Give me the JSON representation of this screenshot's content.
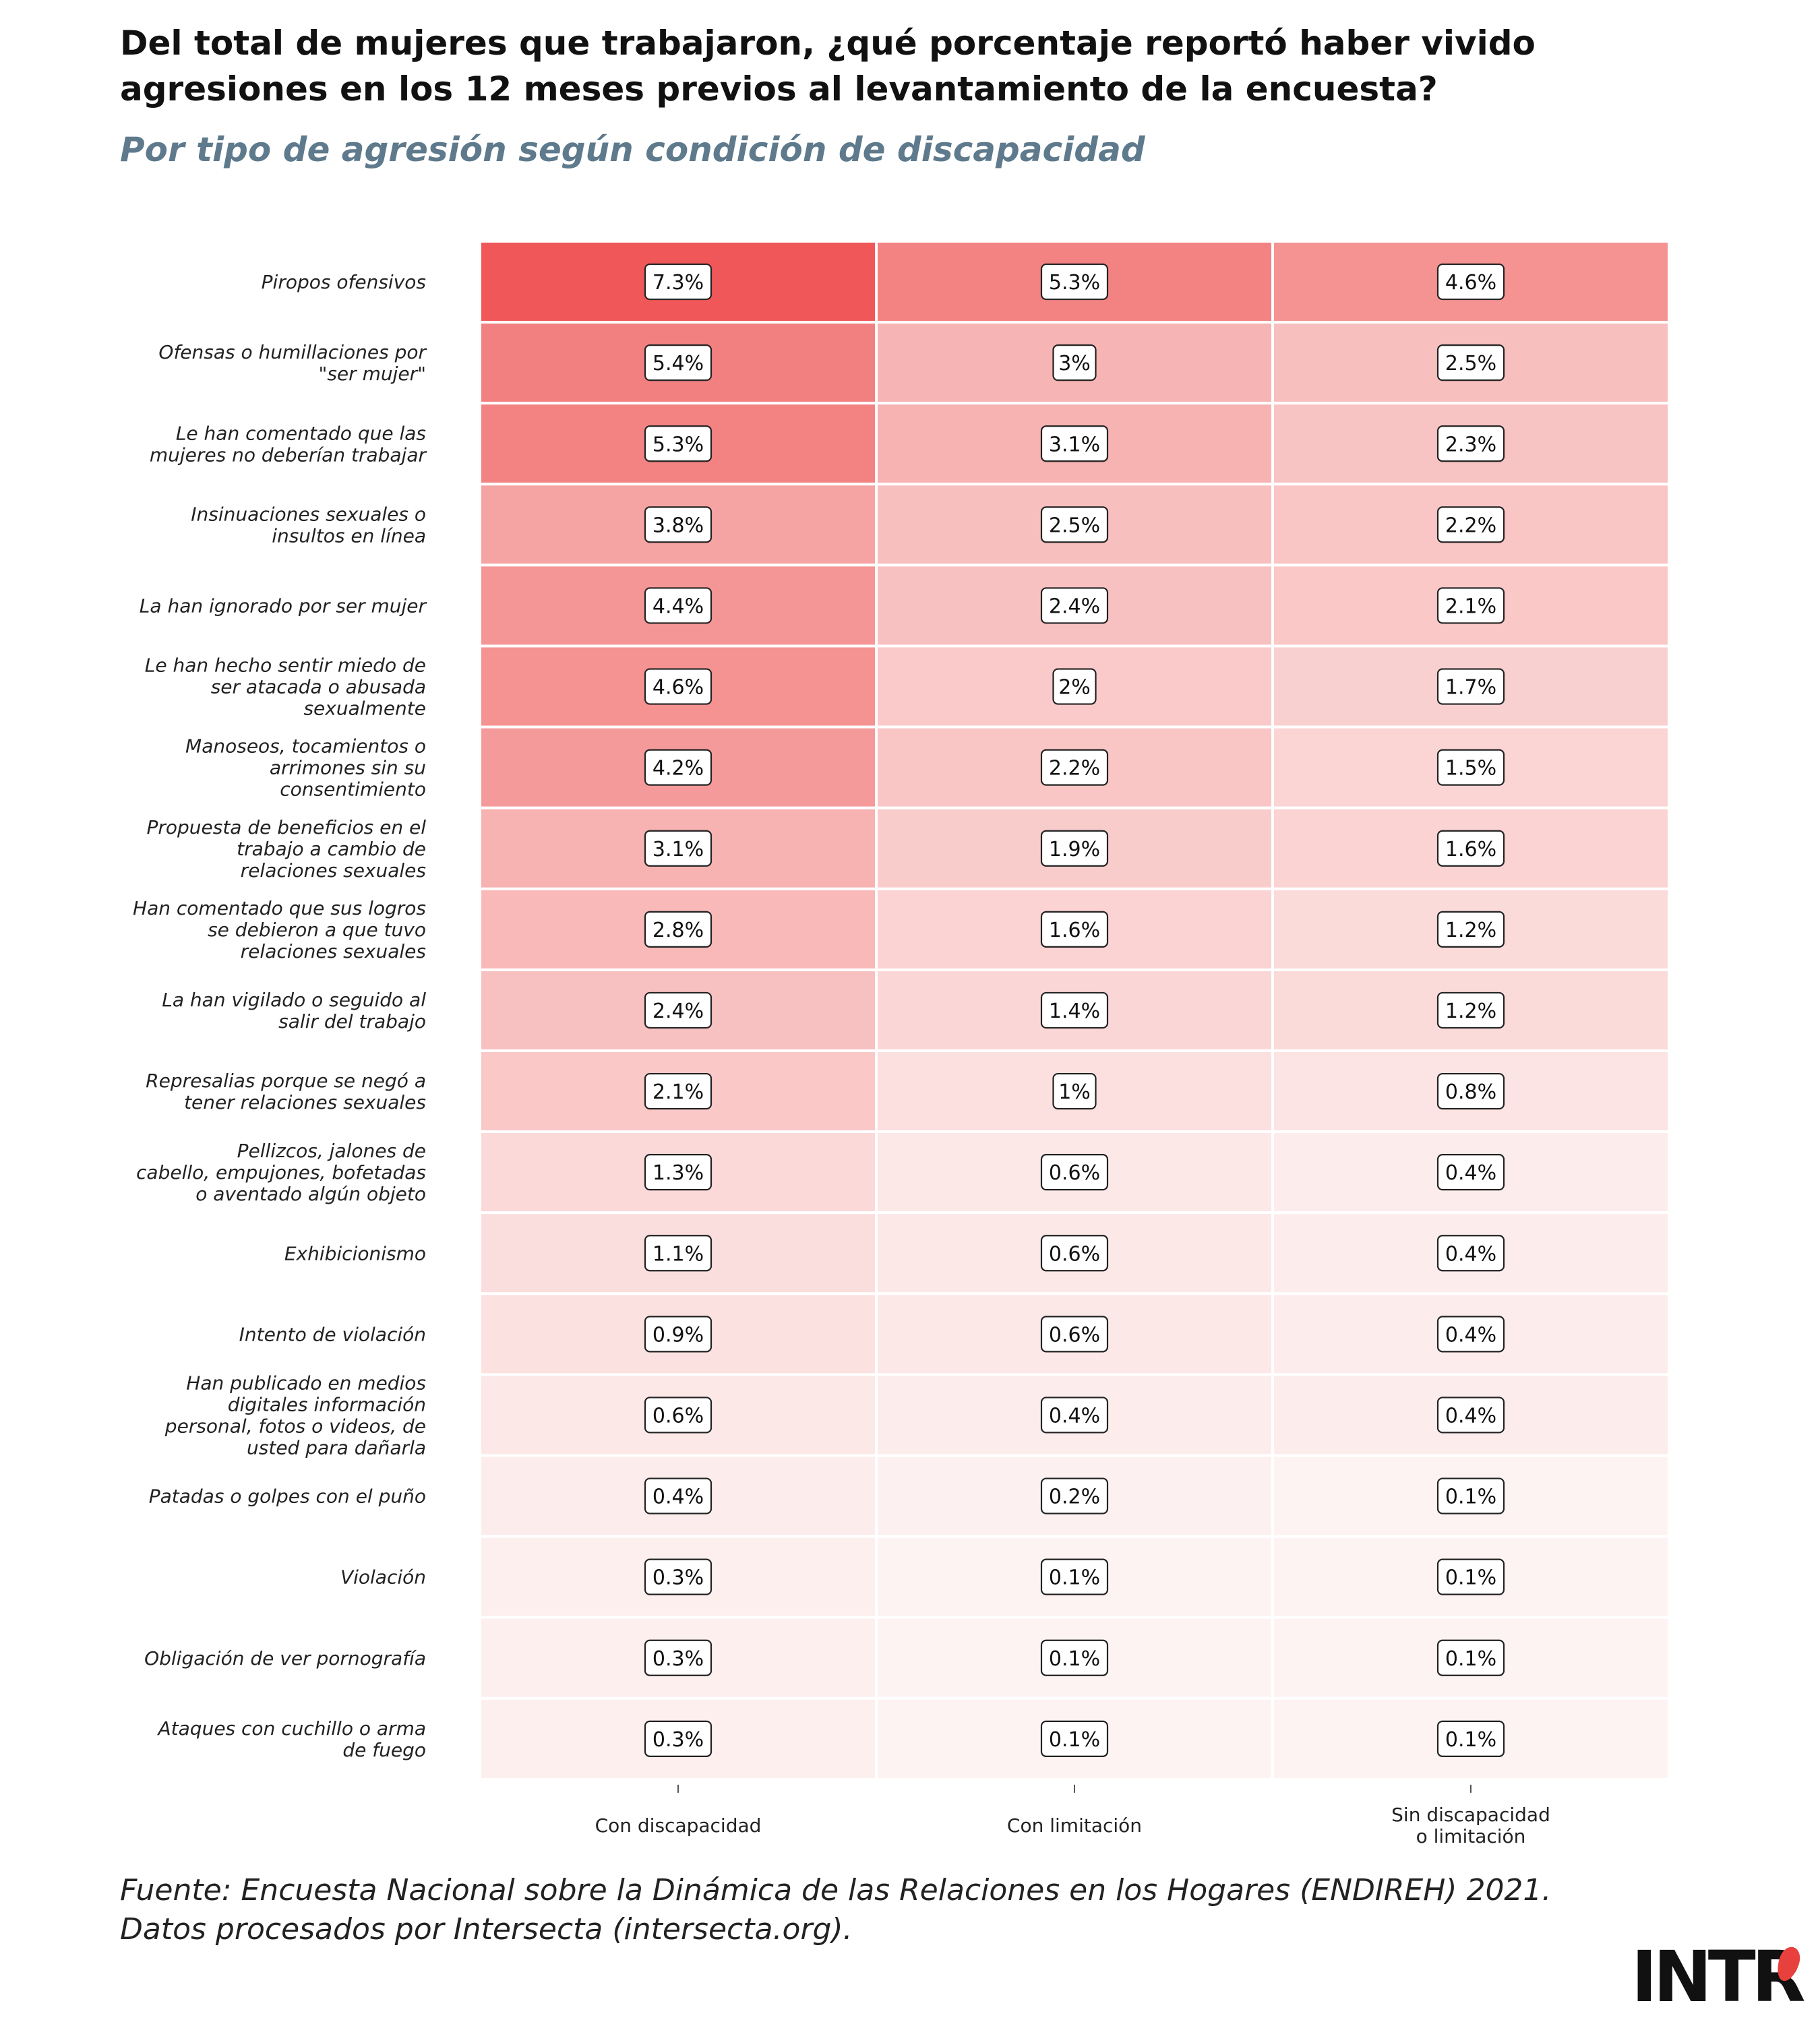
{
  "header": {
    "title_line1": "Del total de mujeres que trabajaron, ¿qué porcentaje reportó haber vivido",
    "title_line2": "agresiones en los 12 meses previos al levantamiento de la encuesta?",
    "subtitle": "Por tipo de agresión según condición de discapacidad"
  },
  "chart_data": {
    "type": "heatmap",
    "columns": [
      [
        "Con discapacidad"
      ],
      [
        "Con limitación"
      ],
      [
        "Sin discapacidad",
        "o limitación"
      ]
    ],
    "rows": [
      {
        "label": [
          "Piropos ofensivos"
        ],
        "values": [
          7.3,
          5.3,
          4.6
        ],
        "labels": [
          "7.3%",
          "5.3%",
          "4.6%"
        ]
      },
      {
        "label": [
          "Ofensas o humillaciones por",
          "\"ser mujer\""
        ],
        "values": [
          5.4,
          3,
          2.5
        ],
        "labels": [
          "5.4%",
          "3%",
          "2.5%"
        ]
      },
      {
        "label": [
          "Le han comentado que las",
          "mujeres no deberían trabajar"
        ],
        "values": [
          5.3,
          3.1,
          2.3
        ],
        "labels": [
          "5.3%",
          "3.1%",
          "2.3%"
        ]
      },
      {
        "label": [
          "Insinuaciones sexuales o",
          "insultos en línea"
        ],
        "values": [
          3.8,
          2.5,
          2.2
        ],
        "labels": [
          "3.8%",
          "2.5%",
          "2.2%"
        ]
      },
      {
        "label": [
          "La han ignorado por ser mujer"
        ],
        "values": [
          4.4,
          2.4,
          2.1
        ],
        "labels": [
          "4.4%",
          "2.4%",
          "2.1%"
        ]
      },
      {
        "label": [
          "Le han hecho sentir miedo de",
          "ser atacada o abusada",
          "sexualmente"
        ],
        "values": [
          4.6,
          2,
          1.7
        ],
        "labels": [
          "4.6%",
          "2%",
          "1.7%"
        ]
      },
      {
        "label": [
          "Manoseos, tocamientos o",
          "arrimones sin su",
          "consentimiento"
        ],
        "values": [
          4.2,
          2.2,
          1.5
        ],
        "labels": [
          "4.2%",
          "2.2%",
          "1.5%"
        ]
      },
      {
        "label": [
          "Propuesta de beneficios en el",
          "trabajo a cambio de",
          "relaciones sexuales"
        ],
        "values": [
          3.1,
          1.9,
          1.6
        ],
        "labels": [
          "3.1%",
          "1.9%",
          "1.6%"
        ]
      },
      {
        "label": [
          "Han comentado que sus logros",
          "se debieron a que tuvo",
          "relaciones sexuales"
        ],
        "values": [
          2.8,
          1.6,
          1.2
        ],
        "labels": [
          "2.8%",
          "1.6%",
          "1.2%"
        ]
      },
      {
        "label": [
          "La han vigilado o seguido al",
          "salir del trabajo"
        ],
        "values": [
          2.4,
          1.4,
          1.2
        ],
        "labels": [
          "2.4%",
          "1.4%",
          "1.2%"
        ]
      },
      {
        "label": [
          "Represalias porque se negó a",
          "tener relaciones sexuales"
        ],
        "values": [
          2.1,
          1,
          0.8
        ],
        "labels": [
          "2.1%",
          "1%",
          "0.8%"
        ]
      },
      {
        "label": [
          "Pellizcos, jalones de",
          "cabello, empujones, bofetadas",
          "o aventado algún objeto"
        ],
        "values": [
          1.3,
          0.6,
          0.4
        ],
        "labels": [
          "1.3%",
          "0.6%",
          "0.4%"
        ]
      },
      {
        "label": [
          "Exhibicionismo"
        ],
        "values": [
          1.1,
          0.6,
          0.4
        ],
        "labels": [
          "1.1%",
          "0.6%",
          "0.4%"
        ]
      },
      {
        "label": [
          "Intento de violación"
        ],
        "values": [
          0.9,
          0.6,
          0.4
        ],
        "labels": [
          "0.9%",
          "0.6%",
          "0.4%"
        ]
      },
      {
        "label": [
          "Han publicado en medios",
          "digitales información",
          "personal, fotos o videos, de",
          "usted para dañarla"
        ],
        "values": [
          0.6,
          0.4,
          0.4
        ],
        "labels": [
          "0.6%",
          "0.4%",
          "0.4%"
        ]
      },
      {
        "label": [
          "Patadas o golpes con el puño"
        ],
        "values": [
          0.4,
          0.2,
          0.1
        ],
        "labels": [
          "0.4%",
          "0.2%",
          "0.1%"
        ]
      },
      {
        "label": [
          "Violación"
        ],
        "values": [
          0.3,
          0.1,
          0.1
        ],
        "labels": [
          "0.3%",
          "0.1%",
          "0.1%"
        ]
      },
      {
        "label": [
          "Obligación de ver pornografía"
        ],
        "values": [
          0.3,
          0.1,
          0.1
        ],
        "labels": [
          "0.3%",
          "0.1%",
          "0.1%"
        ]
      },
      {
        "label": [
          "Ataques con cuchillo o arma",
          "de fuego"
        ],
        "values": [
          0.3,
          0.1,
          0.1
        ],
        "labels": [
          "0.3%",
          "0.1%",
          "0.1%"
        ]
      }
    ],
    "value_range": [
      0.1,
      7.3
    ],
    "colors": {
      "low": "#fcf3f2",
      "high": "#f05758",
      "grid": "#ffffff",
      "label_border": "#222222"
    }
  },
  "footer": {
    "source_line1": "Fuente: Encuesta Nacional sobre la Dinámica de las Relaciones en los Hogares (ENDIREH) 2021.",
    "source_line2": "Datos procesados por Intersecta (intersecta.org).",
    "logo_text": "INTR"
  }
}
